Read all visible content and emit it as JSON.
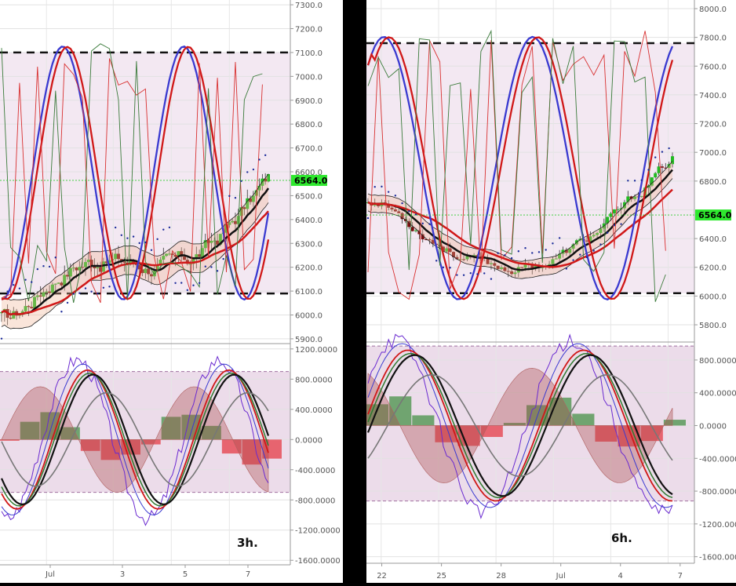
{
  "chart_data": [
    {
      "type": "line",
      "timeframe_label": "3h.",
      "price_panel": {
        "yticks": [
          "7300.0",
          "7200.0",
          "7100.0",
          "7000.0",
          "6900.0",
          "6800.0",
          "6700.0",
          "6600.0",
          "6500.0",
          "6400.0",
          "6300.0",
          "6200.0",
          "6100.0",
          "6000.0",
          "5900.0"
        ],
        "ytick_values": [
          7300,
          7200,
          7100,
          7000,
          6900,
          6800,
          6700,
          6600,
          6500,
          6400,
          6300,
          6200,
          6100,
          6000,
          5900
        ],
        "ylim": [
          5880,
          7320
        ],
        "price_label": "6564.0",
        "price_value": 6564,
        "hlines": [
          7100,
          6090
        ],
        "band": [
          6090,
          7100
        ]
      },
      "osc_panel": {
        "yticks": [
          "1200.0000",
          "800.0000",
          "400.0000",
          "0.0000",
          "-400.0000",
          "-800.0000",
          "-1200.0000",
          "-1600.0000"
        ],
        "ytick_values": [
          1200,
          800,
          400,
          0,
          -400,
          -800,
          -1200,
          -1600
        ],
        "ylim": [
          -1660,
          1250
        ],
        "band": [
          -700,
          900
        ]
      },
      "xticks": [
        "Jul",
        "3",
        "5",
        "7"
      ],
      "xtick_positions": [
        0.16,
        0.39,
        0.59,
        0.79
      ],
      "colors": {
        "fast": "#3a3ad0",
        "slow": "#d01818",
        "green": "#2f7a2f",
        "candle_up": "#22bb22",
        "candle_down": "#7a0a0a",
        "price_tag": "#2ee82e",
        "band": "#f3e8f2"
      }
    },
    {
      "type": "line",
      "timeframe_label": "6h.",
      "price_panel": {
        "yticks": [
          "8000.0",
          "7800.0",
          "7600.0",
          "7400.0",
          "7200.0",
          "7000.0",
          "6800.0",
          "6600.0",
          "6400.0",
          "6200.0",
          "6000.0",
          "5800.0"
        ],
        "ytick_values": [
          8000,
          7800,
          7600,
          7400,
          7200,
          7000,
          6800,
          6600,
          6400,
          6200,
          6000,
          5800
        ],
        "ylim": [
          5680,
          8060
        ],
        "price_label": "6564.0",
        "price_value": 6564,
        "hlines": [
          7760,
          6020
        ],
        "band": [
          6020,
          7760
        ]
      },
      "osc_panel": {
        "yticks": [
          "800.0000",
          "400.0000",
          "0.0000",
          "-400.0000",
          "-800.0000",
          "-1200.0000",
          "-1600.0000"
        ],
        "ytick_values": [
          800,
          400,
          0,
          -400,
          -800,
          -1200,
          -1600
        ],
        "ylim": [
          -1680,
          1000
        ],
        "band": [
          -920,
          970
        ]
      },
      "xticks": [
        "22",
        "25",
        "28",
        "Jul",
        "4",
        "7"
      ],
      "xtick_positions": [
        0.045,
        0.22,
        0.395,
        0.57,
        0.745,
        0.92
      ],
      "colors": {
        "fast": "#3a3ad0",
        "slow": "#d01818",
        "green": "#2f7a2f",
        "candle_up": "#22bb22",
        "candle_down": "#7a0a0a",
        "price_tag": "#2ee82e",
        "band": "#f3e8f2"
      }
    }
  ]
}
